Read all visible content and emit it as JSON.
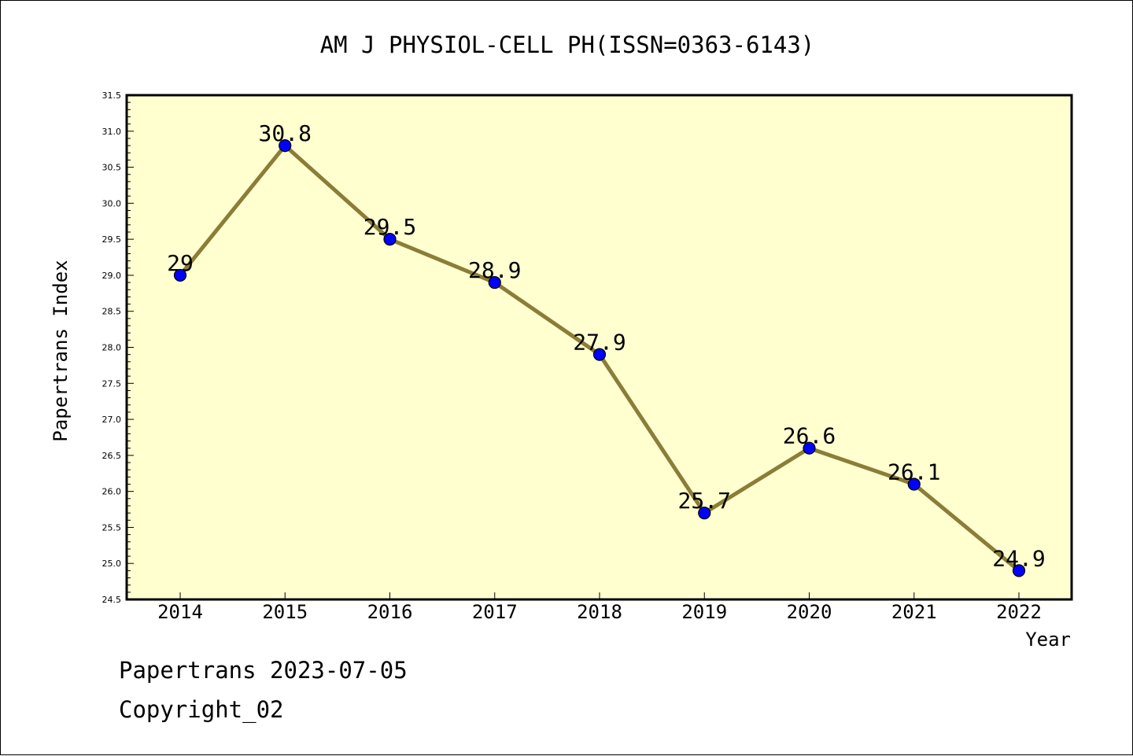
{
  "chart_data": {
    "type": "line",
    "title": "AM J PHYSIOL-CELL PH(ISSN=0363-6143)",
    "xlabel": "Year",
    "ylabel": "Papertrans Index",
    "categories": [
      "2014",
      "2015",
      "2016",
      "2017",
      "2018",
      "2019",
      "2020",
      "2021",
      "2022"
    ],
    "series": [
      {
        "values": [
          29,
          30.8,
          29.5,
          28.9,
          27.9,
          25.7,
          26.6,
          26.1,
          24.9
        ],
        "data_labels": [
          "29",
          "30.8",
          "29.5",
          "28.9",
          "27.9",
          "25.7",
          "26.6",
          "26.1",
          "24.9"
        ]
      }
    ],
    "ylim": [
      24.5,
      31.5
    ],
    "yticks": [
      "24.5",
      "25.0",
      "25.5",
      "26.0",
      "26.5",
      "27.0",
      "27.5",
      "28.0",
      "28.5",
      "29.0",
      "29.5",
      "30.0",
      "30.5",
      "31.0",
      "31.5"
    ],
    "grid": false,
    "legend": "none",
    "colors": {
      "plot_background": "#ffffd0",
      "line": "#8b7d37",
      "marker": "#0000ff",
      "marker_edge": "#000000"
    }
  },
  "footer": {
    "line1": "Papertrans 2023-07-05",
    "line2": "Copyright_02"
  }
}
